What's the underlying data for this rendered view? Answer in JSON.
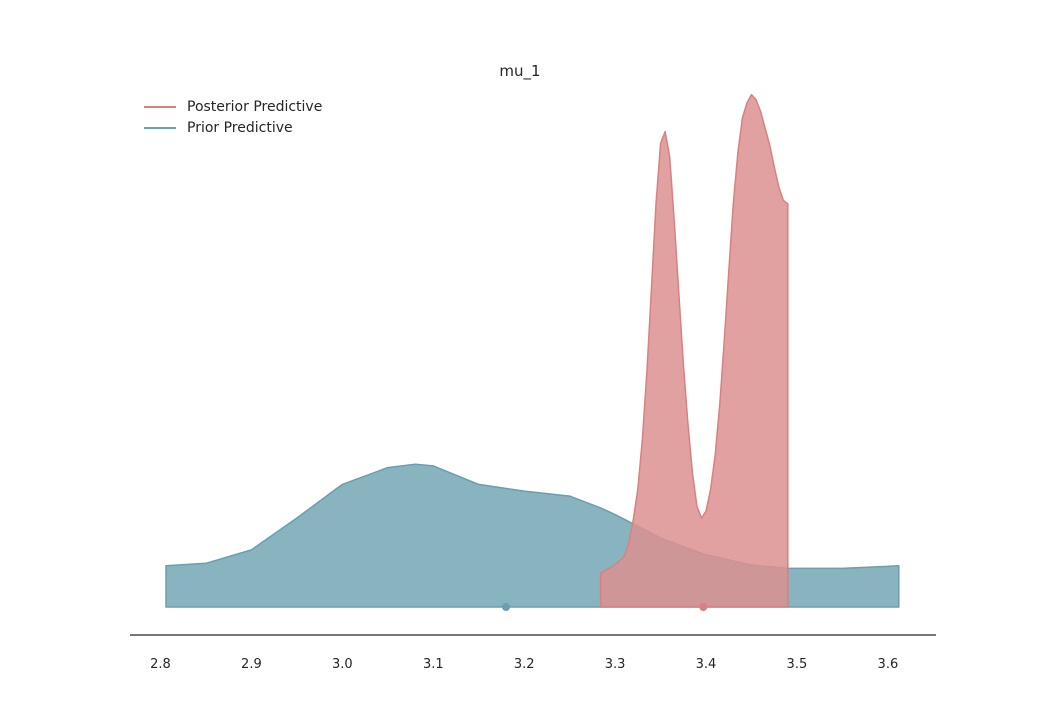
{
  "chart_data": {
    "type": "area",
    "title": "mu_1",
    "xlabel": "",
    "ylabel": "",
    "xlim": [
      2.79,
      3.65
    ],
    "x_ticks": [
      "2.8",
      "2.9",
      "3.0",
      "3.1",
      "3.2",
      "3.3",
      "3.4",
      "3.5",
      "3.6"
    ],
    "grid": false,
    "legend_position": "top-left",
    "series": [
      {
        "name": "Posterior Predictive",
        "color": "#d98081",
        "fill_color": "#dc9090",
        "point_estimate": 3.397,
        "x": [
          3.284,
          3.29,
          3.3,
          3.31,
          3.315,
          3.32,
          3.325,
          3.33,
          3.335,
          3.34,
          3.345,
          3.35,
          3.355,
          3.36,
          3.365,
          3.37,
          3.375,
          3.38,
          3.385,
          3.39,
          3.395,
          3.4,
          3.405,
          3.41,
          3.415,
          3.42,
          3.425,
          3.43,
          3.435,
          3.44,
          3.445,
          3.45,
          3.455,
          3.46,
          3.465,
          3.47,
          3.475,
          3.48,
          3.485,
          3.49
        ],
        "density": [
          0.2,
          0.22,
          0.25,
          0.3,
          0.38,
          0.52,
          0.7,
          1.0,
          1.4,
          1.9,
          2.4,
          2.76,
          2.83,
          2.68,
          2.3,
          1.88,
          1.45,
          1.1,
          0.8,
          0.6,
          0.53,
          0.57,
          0.7,
          0.9,
          1.2,
          1.58,
          2.0,
          2.4,
          2.7,
          2.91,
          3.0,
          3.05,
          3.02,
          2.95,
          2.85,
          2.75,
          2.62,
          2.5,
          2.42,
          2.4
        ]
      },
      {
        "name": "Prior Predictive",
        "color": "#6a9eb0",
        "fill_color": "#7eaeba",
        "point_estimate": 3.18,
        "x": [
          2.806,
          2.85,
          2.9,
          2.95,
          3.0,
          3.05,
          3.08,
          3.1,
          3.15,
          3.2,
          3.25,
          3.284,
          3.3,
          3.35,
          3.4,
          3.45,
          3.49,
          3.55,
          3.612
        ],
        "density": [
          0.245,
          0.26,
          0.34,
          0.53,
          0.73,
          0.83,
          0.85,
          0.84,
          0.73,
          0.69,
          0.66,
          0.59,
          0.55,
          0.41,
          0.31,
          0.25,
          0.23,
          0.23,
          0.245
        ]
      }
    ]
  }
}
